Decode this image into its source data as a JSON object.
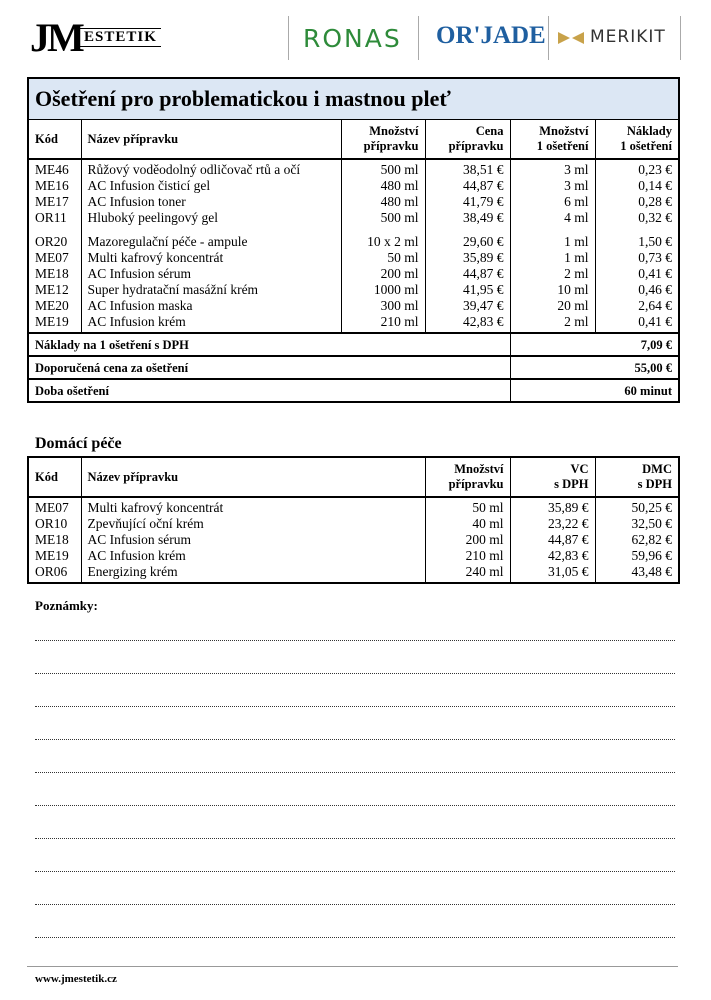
{
  "header": {
    "logo_initials": "JM",
    "logo_word": "ESTETIK",
    "brands": [
      "RONAS",
      "OR'JADE",
      "MERIKIT"
    ]
  },
  "main": {
    "title": "Ošetření pro problematickou i mastnou pleť",
    "headers": [
      [
        "Kód"
      ],
      [
        "Název přípravku"
      ],
      [
        "Množství",
        "přípravku"
      ],
      [
        "Cena",
        "přípravku"
      ],
      [
        "Množství",
        "1 ošetření"
      ],
      [
        "Náklady",
        "1 ošetření"
      ]
    ],
    "groups": [
      [
        [
          "ME46",
          "Růžový voděodolný odličovač rtů a očí",
          "500 ml",
          "38,51 €",
          "3 ml",
          "0,23 €"
        ],
        [
          "ME16",
          "AC Infusion čisticí gel",
          "480 ml",
          "44,87 €",
          "3 ml",
          "0,14 €"
        ],
        [
          "ME17",
          "AC Infusion toner",
          "480 ml",
          "41,79 €",
          "6 ml",
          "0,28 €"
        ],
        [
          "OR11",
          "Hluboký peelingový gel",
          "500 ml",
          "38,49 €",
          "4 ml",
          "0,32 €"
        ]
      ],
      [
        [
          "OR20",
          "Mazoregulační péče - ampule",
          "10 x 2 ml",
          "29,60 €",
          "1 ml",
          "1,50 €"
        ],
        [
          "ME07",
          "Multi kafrový koncentrát",
          "50 ml",
          "35,89 €",
          "1 ml",
          "0,73 €"
        ],
        [
          "ME18",
          "AC Infusion sérum",
          "200 ml",
          "44,87 €",
          "2 ml",
          "0,41 €"
        ],
        [
          "ME12",
          "Super hydratační masážní krém",
          "1000 ml",
          "41,95 €",
          "10 ml",
          "0,46 €"
        ],
        [
          "ME20",
          "AC Infusion maska",
          "300 ml",
          "39,47 €",
          "20 ml",
          "2,64 €"
        ],
        [
          "ME19",
          "AC Infusion krém",
          "210 ml",
          "42,83 €",
          "2 ml",
          "0,41 €"
        ]
      ]
    ],
    "summary": [
      {
        "label": "Náklady na 1 ošetření s DPH",
        "value": "7,09 €"
      },
      {
        "label": "Doporučená cena za ošetření",
        "value": "55,00 €"
      },
      {
        "label": "Doba ošetření",
        "value": "60 minut"
      }
    ]
  },
  "home": {
    "title": "Domácí péče",
    "headers": [
      [
        "Kód"
      ],
      [
        "Název přípravku"
      ],
      [
        "Množství",
        "přípravku"
      ],
      [
        "VC",
        "s DPH"
      ],
      [
        "DMC",
        "s DPH"
      ]
    ],
    "rows": [
      [
        "ME07",
        "Multi kafrový koncentrát",
        "50 ml",
        "35,89 €",
        "50,25 €"
      ],
      [
        "OR10",
        "Zpevňující oční krém",
        "40 ml",
        "23,22 €",
        "32,50 €"
      ],
      [
        "ME18",
        "AC Infusion sérum",
        "200 ml",
        "44,87 €",
        "62,82 €"
      ],
      [
        "ME19",
        "AC Infusion krém",
        "210 ml",
        "42,83 €",
        "59,96 €"
      ],
      [
        "OR06",
        "Energizing krém",
        "240 ml",
        "31,05 €",
        "43,48 €"
      ]
    ]
  },
  "notes": {
    "title": "Poznámky:"
  },
  "footer": {
    "url": "www.jmestetik.cz"
  }
}
